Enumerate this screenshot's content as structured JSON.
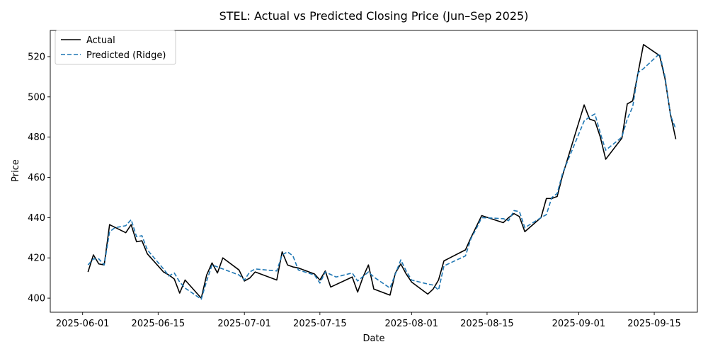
{
  "chart_data": {
    "type": "line",
    "title": "STEL: Actual vs Predicted Closing Price (Jun–Sep 2025)",
    "xlabel": "Date",
    "ylabel": "Price",
    "xlim": [
      "2025-05-26",
      "2025-09-23"
    ],
    "ylim": [
      393,
      533
    ],
    "xticks": [
      "2025-06-01",
      "2025-06-15",
      "2025-07-01",
      "2025-07-15",
      "2025-08-01",
      "2025-08-15",
      "2025-09-01",
      "2025-09-15"
    ],
    "yticks": [
      400,
      420,
      440,
      460,
      480,
      500,
      520
    ],
    "legend": "top-left",
    "grid": false,
    "series": [
      {
        "name": "Actual",
        "color": "#000000",
        "style": "solid",
        "points": [
          [
            "2025-06-02",
            413
          ],
          [
            "2025-06-03",
            421.5
          ],
          [
            "2025-06-04",
            417
          ],
          [
            "2025-06-05",
            416.5
          ],
          [
            "2025-06-06",
            436.5
          ],
          [
            "2025-06-09",
            432.5
          ],
          [
            "2025-06-10",
            436.5
          ],
          [
            "2025-06-11",
            428
          ],
          [
            "2025-06-12",
            428.5
          ],
          [
            "2025-06-13",
            422
          ],
          [
            "2025-06-16",
            413
          ],
          [
            "2025-06-17",
            411.5
          ],
          [
            "2025-06-18",
            409.5
          ],
          [
            "2025-06-19",
            402.5
          ],
          [
            "2025-06-20",
            409
          ],
          [
            "2025-06-23",
            400
          ],
          [
            "2025-06-24",
            411.5
          ],
          [
            "2025-06-25",
            417.5
          ],
          [
            "2025-06-26",
            412.5
          ],
          [
            "2025-06-27",
            420
          ],
          [
            "2025-06-30",
            414
          ],
          [
            "2025-07-01",
            408.5
          ],
          [
            "2025-07-02",
            410
          ],
          [
            "2025-07-03",
            413
          ],
          [
            "2025-07-07",
            409
          ],
          [
            "2025-07-08",
            423
          ],
          [
            "2025-07-09",
            416.5
          ],
          [
            "2025-07-10",
            415.5
          ],
          [
            "2025-07-11",
            415
          ],
          [
            "2025-07-14",
            412
          ],
          [
            "2025-07-15",
            409
          ],
          [
            "2025-07-16",
            413.5
          ],
          [
            "2025-07-17",
            405.5
          ],
          [
            "2025-07-21",
            410.5
          ],
          [
            "2025-07-22",
            403
          ],
          [
            "2025-07-23",
            410.5
          ],
          [
            "2025-07-24",
            416.5
          ],
          [
            "2025-07-25",
            404.5
          ],
          [
            "2025-07-28",
            401.5
          ],
          [
            "2025-07-29",
            412.5
          ],
          [
            "2025-07-30",
            417
          ],
          [
            "2025-07-31",
            412
          ],
          [
            "2025-08-01",
            408
          ],
          [
            "2025-08-04",
            402
          ],
          [
            "2025-08-05",
            404.5
          ],
          [
            "2025-08-06",
            409
          ],
          [
            "2025-08-07",
            418.5
          ],
          [
            "2025-08-11",
            424
          ],
          [
            "2025-08-12",
            430
          ],
          [
            "2025-08-13",
            435.5
          ],
          [
            "2025-08-14",
            441
          ],
          [
            "2025-08-18",
            437.5
          ],
          [
            "2025-08-19",
            440
          ],
          [
            "2025-08-20",
            442
          ],
          [
            "2025-08-21",
            440.5
          ],
          [
            "2025-08-22",
            433
          ],
          [
            "2025-08-25",
            440
          ],
          [
            "2025-08-26",
            449.5
          ],
          [
            "2025-08-27",
            449.5
          ],
          [
            "2025-08-28",
            450.5
          ],
          [
            "2025-08-29",
            461
          ],
          [
            "2025-09-02",
            496
          ],
          [
            "2025-09-03",
            489
          ],
          [
            "2025-09-04",
            488
          ],
          [
            "2025-09-05",
            480
          ],
          [
            "2025-09-06",
            469
          ],
          [
            "2025-09-09",
            479.5
          ],
          [
            "2025-09-10",
            496.5
          ],
          [
            "2025-09-11",
            498
          ],
          [
            "2025-09-12",
            512
          ],
          [
            "2025-09-13",
            526
          ],
          [
            "2025-09-16",
            520.5
          ],
          [
            "2025-09-17",
            509
          ],
          [
            "2025-09-18",
            491.5
          ],
          [
            "2025-09-19",
            479
          ]
        ]
      },
      {
        "name": "Predicted (Ridge)",
        "color": "#1f77b4",
        "style": "dashed",
        "points": [
          [
            "2025-06-02",
            416.5
          ],
          [
            "2025-06-03",
            419.5
          ],
          [
            "2025-06-04",
            419.5
          ],
          [
            "2025-06-05",
            416.5
          ],
          [
            "2025-06-06",
            433
          ],
          [
            "2025-06-07",
            435
          ],
          [
            "2025-06-09",
            436
          ],
          [
            "2025-06-10",
            439
          ],
          [
            "2025-06-11",
            430.5
          ],
          [
            "2025-06-12",
            431
          ],
          [
            "2025-06-13",
            424
          ],
          [
            "2025-06-16",
            414.5
          ],
          [
            "2025-06-17",
            411
          ],
          [
            "2025-06-18",
            412.5
          ],
          [
            "2025-06-19",
            408
          ],
          [
            "2025-06-20",
            405
          ],
          [
            "2025-06-23",
            399.5
          ],
          [
            "2025-06-24",
            408.5
          ],
          [
            "2025-06-25",
            416.5
          ],
          [
            "2025-06-26",
            415.5
          ],
          [
            "2025-06-27",
            414.5
          ],
          [
            "2025-06-30",
            411.5
          ],
          [
            "2025-07-01",
            409
          ],
          [
            "2025-07-02",
            413
          ],
          [
            "2025-07-03",
            414.5
          ],
          [
            "2025-07-07",
            413.5
          ],
          [
            "2025-07-08",
            421.5
          ],
          [
            "2025-07-09",
            423
          ],
          [
            "2025-07-10",
            421
          ],
          [
            "2025-07-11",
            414
          ],
          [
            "2025-07-14",
            411.5
          ],
          [
            "2025-07-15",
            407.5
          ],
          [
            "2025-07-16",
            413
          ],
          [
            "2025-07-18",
            410.5
          ],
          [
            "2025-07-21",
            412.5
          ],
          [
            "2025-07-22",
            408.5
          ],
          [
            "2025-07-24",
            413
          ],
          [
            "2025-07-25",
            410.5
          ],
          [
            "2025-07-28",
            405
          ],
          [
            "2025-07-29",
            412
          ],
          [
            "2025-07-30",
            419
          ],
          [
            "2025-07-31",
            413.5
          ],
          [
            "2025-08-01",
            409
          ],
          [
            "2025-08-04",
            407
          ],
          [
            "2025-08-05",
            406.5
          ],
          [
            "2025-08-06",
            404
          ],
          [
            "2025-08-07",
            416
          ],
          [
            "2025-08-11",
            421
          ],
          [
            "2025-08-12",
            429.5
          ],
          [
            "2025-08-13",
            434.5
          ],
          [
            "2025-08-14",
            440
          ],
          [
            "2025-08-18",
            439.5
          ],
          [
            "2025-08-19",
            438.5
          ],
          [
            "2025-08-20",
            443.5
          ],
          [
            "2025-08-21",
            443
          ],
          [
            "2025-08-22",
            435
          ],
          [
            "2025-08-25",
            440
          ],
          [
            "2025-08-26",
            441.5
          ],
          [
            "2025-08-27",
            450
          ],
          [
            "2025-08-28",
            452
          ],
          [
            "2025-08-29",
            462
          ],
          [
            "2025-09-02",
            488
          ],
          [
            "2025-09-03",
            490
          ],
          [
            "2025-09-04",
            491.5
          ],
          [
            "2025-09-05",
            482
          ],
          [
            "2025-09-06",
            473.5
          ],
          [
            "2025-09-09",
            480
          ],
          [
            "2025-09-10",
            489
          ],
          [
            "2025-09-11",
            495
          ],
          [
            "2025-09-12",
            512
          ],
          [
            "2025-09-13",
            514
          ],
          [
            "2025-09-16",
            521.5
          ],
          [
            "2025-09-17",
            510
          ],
          [
            "2025-09-18",
            491
          ],
          [
            "2025-09-19",
            484
          ]
        ]
      }
    ]
  }
}
